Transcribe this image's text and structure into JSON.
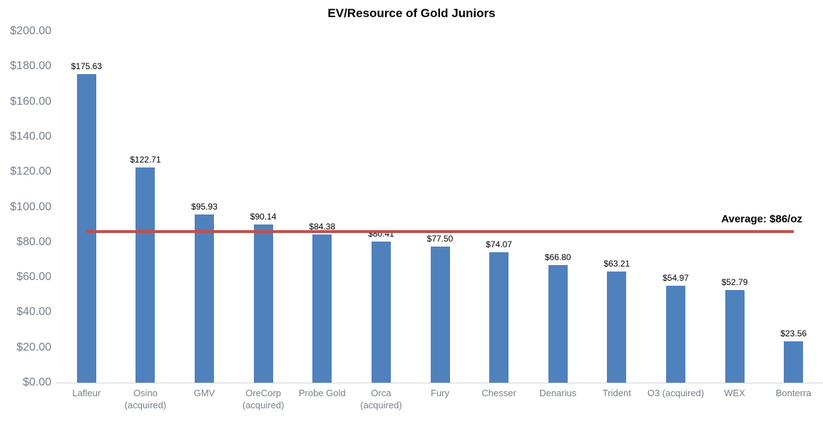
{
  "header": {
    "title": "EV/Resource of Gold Juniors"
  },
  "annotations": {
    "average_label": "Average: $86/oz"
  },
  "colors": {
    "bar": "#4F81BD",
    "average_line": "#C0504D",
    "axis_text": "#76808b",
    "data_label_text": "#000000",
    "title_text": "#000000",
    "axis_line": "#d6d6d6",
    "background": "#ffffff"
  },
  "chart_data": {
    "type": "bar",
    "title": "EV/Resource of Gold Juniors",
    "xlabel": "",
    "ylabel": "",
    "grid": false,
    "legend": "none",
    "ylim": [
      0,
      200
    ],
    "ytick_step": 20,
    "ytick_labels": [
      "$0.00",
      "$20.00",
      "$40.00",
      "$60.00",
      "$80.00",
      "$100.00",
      "$120.00",
      "$140.00",
      "$160.00",
      "$180.00",
      "$200.00"
    ],
    "categories": [
      "Lafleur",
      "Osino (acquired)",
      "GMV",
      "OreCorp (acquired)",
      "Probe Gold",
      "Orca (acquired)",
      "Fury",
      "Chesser",
      "Denarius",
      "Trident",
      "O3 (acquired)",
      "WEX",
      "Bonterra"
    ],
    "category_labels": [
      "Lafleur",
      "Osino\n(acquired)",
      "GMV",
      "OreCorp\n(acquired)",
      "Probe Gold",
      "Orca\n(acquired)",
      "Fury",
      "Chesser",
      "Denarius",
      "Trident",
      "O3 (acquired)",
      "WEX",
      "Bonterra"
    ],
    "values": [
      175.63,
      122.71,
      95.93,
      90.14,
      84.38,
      80.41,
      77.5,
      74.07,
      66.8,
      63.21,
      54.97,
      52.79,
      23.56
    ],
    "data_labels": [
      "$175.63",
      "$122.71",
      "$95.93",
      "$90.14",
      "$84.38",
      "$80.41",
      "$77.50",
      "$74.07",
      "$66.80",
      "$63.21",
      "$54.97",
      "$52.79",
      "$23.56"
    ],
    "average_line": {
      "value": 86,
      "label": "Average: $86/oz"
    }
  }
}
